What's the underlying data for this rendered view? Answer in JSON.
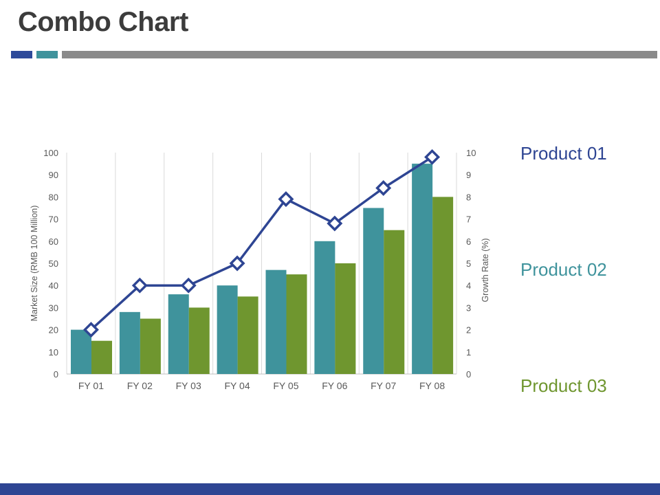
{
  "slide": {
    "title": "Combo Chart",
    "header_colors": [
      "#2e4a9a",
      "#3f939c",
      "#8a8a8a"
    ],
    "footer_color": "#2e4593"
  },
  "chart_data": {
    "type": "bar+line",
    "categories": [
      "FY 01",
      "FY 02",
      "FY 03",
      "FY 04",
      "FY 05",
      "FY 06",
      "FY 07",
      "FY 08"
    ],
    "series": [
      {
        "name": "Product 01",
        "type": "line",
        "axis": "right",
        "color": "#2e4593",
        "values": [
          2,
          4,
          4,
          5,
          7.9,
          6.8,
          8.4,
          9.8
        ]
      },
      {
        "name": "Product 02",
        "type": "bar",
        "axis": "left",
        "color": "#3f939c",
        "values": [
          20,
          28,
          36,
          40,
          47,
          60,
          75,
          95
        ]
      },
      {
        "name": "Product 03",
        "type": "bar",
        "axis": "left",
        "color": "#6f962f",
        "values": [
          15,
          25,
          30,
          35,
          45,
          50,
          65,
          80
        ]
      }
    ],
    "ylabel": "Market Size (RMB 100 Million)",
    "y2label": "Growth Rate (%)",
    "ylim": [
      0,
      100
    ],
    "y2lim": [
      0,
      10
    ],
    "yticks": [
      "0",
      "10",
      "20",
      "30",
      "40",
      "50",
      "60",
      "70",
      "80",
      "90",
      "100"
    ],
    "y2ticks": [
      "0",
      "1",
      "2",
      "3",
      "4",
      "5",
      "6",
      "7",
      "8",
      "9",
      "10"
    ],
    "grid": "vertical",
    "legend": "right"
  }
}
